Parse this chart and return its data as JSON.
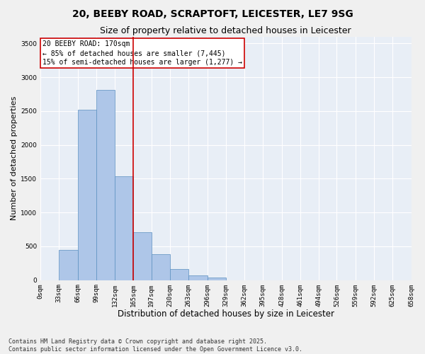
{
  "title1": "20, BEEBY ROAD, SCRAPTOFT, LEICESTER, LE7 9SG",
  "title2": "Size of property relative to detached houses in Leicester",
  "xlabel": "Distribution of detached houses by size in Leicester",
  "ylabel": "Number of detached properties",
  "bar_left_edges": [
    0,
    33,
    66,
    99,
    132,
    165,
    197,
    230,
    263,
    296,
    329,
    362,
    395,
    428,
    461,
    494,
    526,
    559,
    592,
    625
  ],
  "bar_widths": [
    33,
    33,
    33,
    33,
    33,
    32,
    33,
    33,
    33,
    33,
    33,
    33,
    33,
    33,
    33,
    32,
    33,
    33,
    33,
    33
  ],
  "bar_heights": [
    0,
    450,
    2520,
    2810,
    1530,
    710,
    380,
    160,
    70,
    40,
    0,
    0,
    0,
    0,
    0,
    0,
    0,
    0,
    0,
    0
  ],
  "bar_color": "#aec6e8",
  "bar_edge_color": "#5a8fc0",
  "vline_x": 165,
  "vline_color": "#cc0000",
  "annotation_text": "20 BEEBY ROAD: 170sqm\n← 85% of detached houses are smaller (7,445)\n15% of semi-detached houses are larger (1,277) →",
  "annotation_box_color": "#cc0000",
  "ylim": [
    0,
    3600
  ],
  "xlim": [
    0,
    658
  ],
  "tick_labels": [
    "0sqm",
    "33sqm",
    "66sqm",
    "99sqm",
    "132sqm",
    "165sqm",
    "197sqm",
    "230sqm",
    "263sqm",
    "296sqm",
    "329sqm",
    "362sqm",
    "395sqm",
    "428sqm",
    "461sqm",
    "494sqm",
    "526sqm",
    "559sqm",
    "592sqm",
    "625sqm",
    "658sqm"
  ],
  "tick_positions": [
    0,
    33,
    66,
    99,
    132,
    165,
    197,
    230,
    263,
    296,
    329,
    362,
    395,
    428,
    461,
    494,
    526,
    559,
    592,
    625,
    658
  ],
  "bg_color": "#e8eef6",
  "fig_bg_color": "#f0f0f0",
  "footer_text": "Contains HM Land Registry data © Crown copyright and database right 2025.\nContains public sector information licensed under the Open Government Licence v3.0.",
  "grid_color": "#ffffff",
  "title_fontsize": 10,
  "subtitle_fontsize": 9,
  "ylabel_fontsize": 8,
  "xlabel_fontsize": 8.5,
  "annotation_fontsize": 7,
  "tick_fontsize": 6.5,
  "footer_fontsize": 6
}
